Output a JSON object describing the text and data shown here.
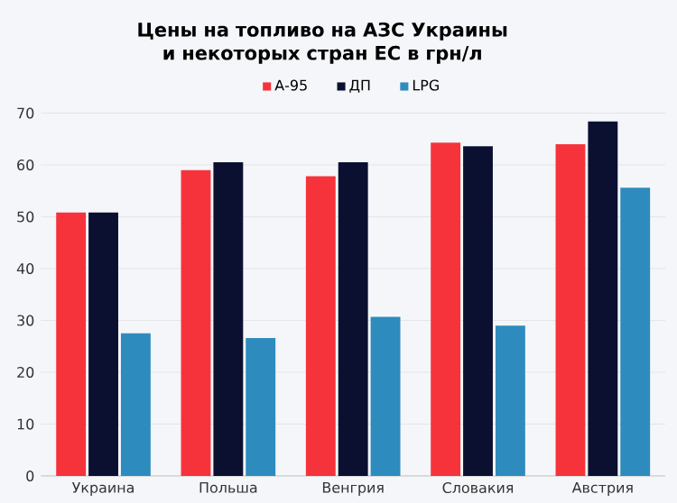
{
  "chart_data": {
    "type": "bar",
    "title": "Цены на топливо на АЗС Украины и некоторых стран ЕС в грн/л",
    "categories": [
      "Украина",
      "Польша",
      "Венгрия",
      "Словакия",
      "Австрия"
    ],
    "series": [
      {
        "name": "А-95",
        "color": "#f6333a",
        "values": [
          50.8,
          59.0,
          57.8,
          64.3,
          64.0
        ]
      },
      {
        "name": "ДП",
        "color": "#0b1031",
        "values": [
          50.8,
          60.5,
          60.5,
          63.6,
          68.4
        ]
      },
      {
        "name": "LPG",
        "color": "#2e8bbd",
        "values": [
          27.5,
          26.6,
          30.7,
          29.0,
          55.6
        ]
      }
    ],
    "ylim": [
      0,
      70
    ],
    "yticks": [
      0,
      10,
      20,
      30,
      40,
      50,
      60,
      70
    ],
    "grid": "y",
    "legend": "top"
  }
}
